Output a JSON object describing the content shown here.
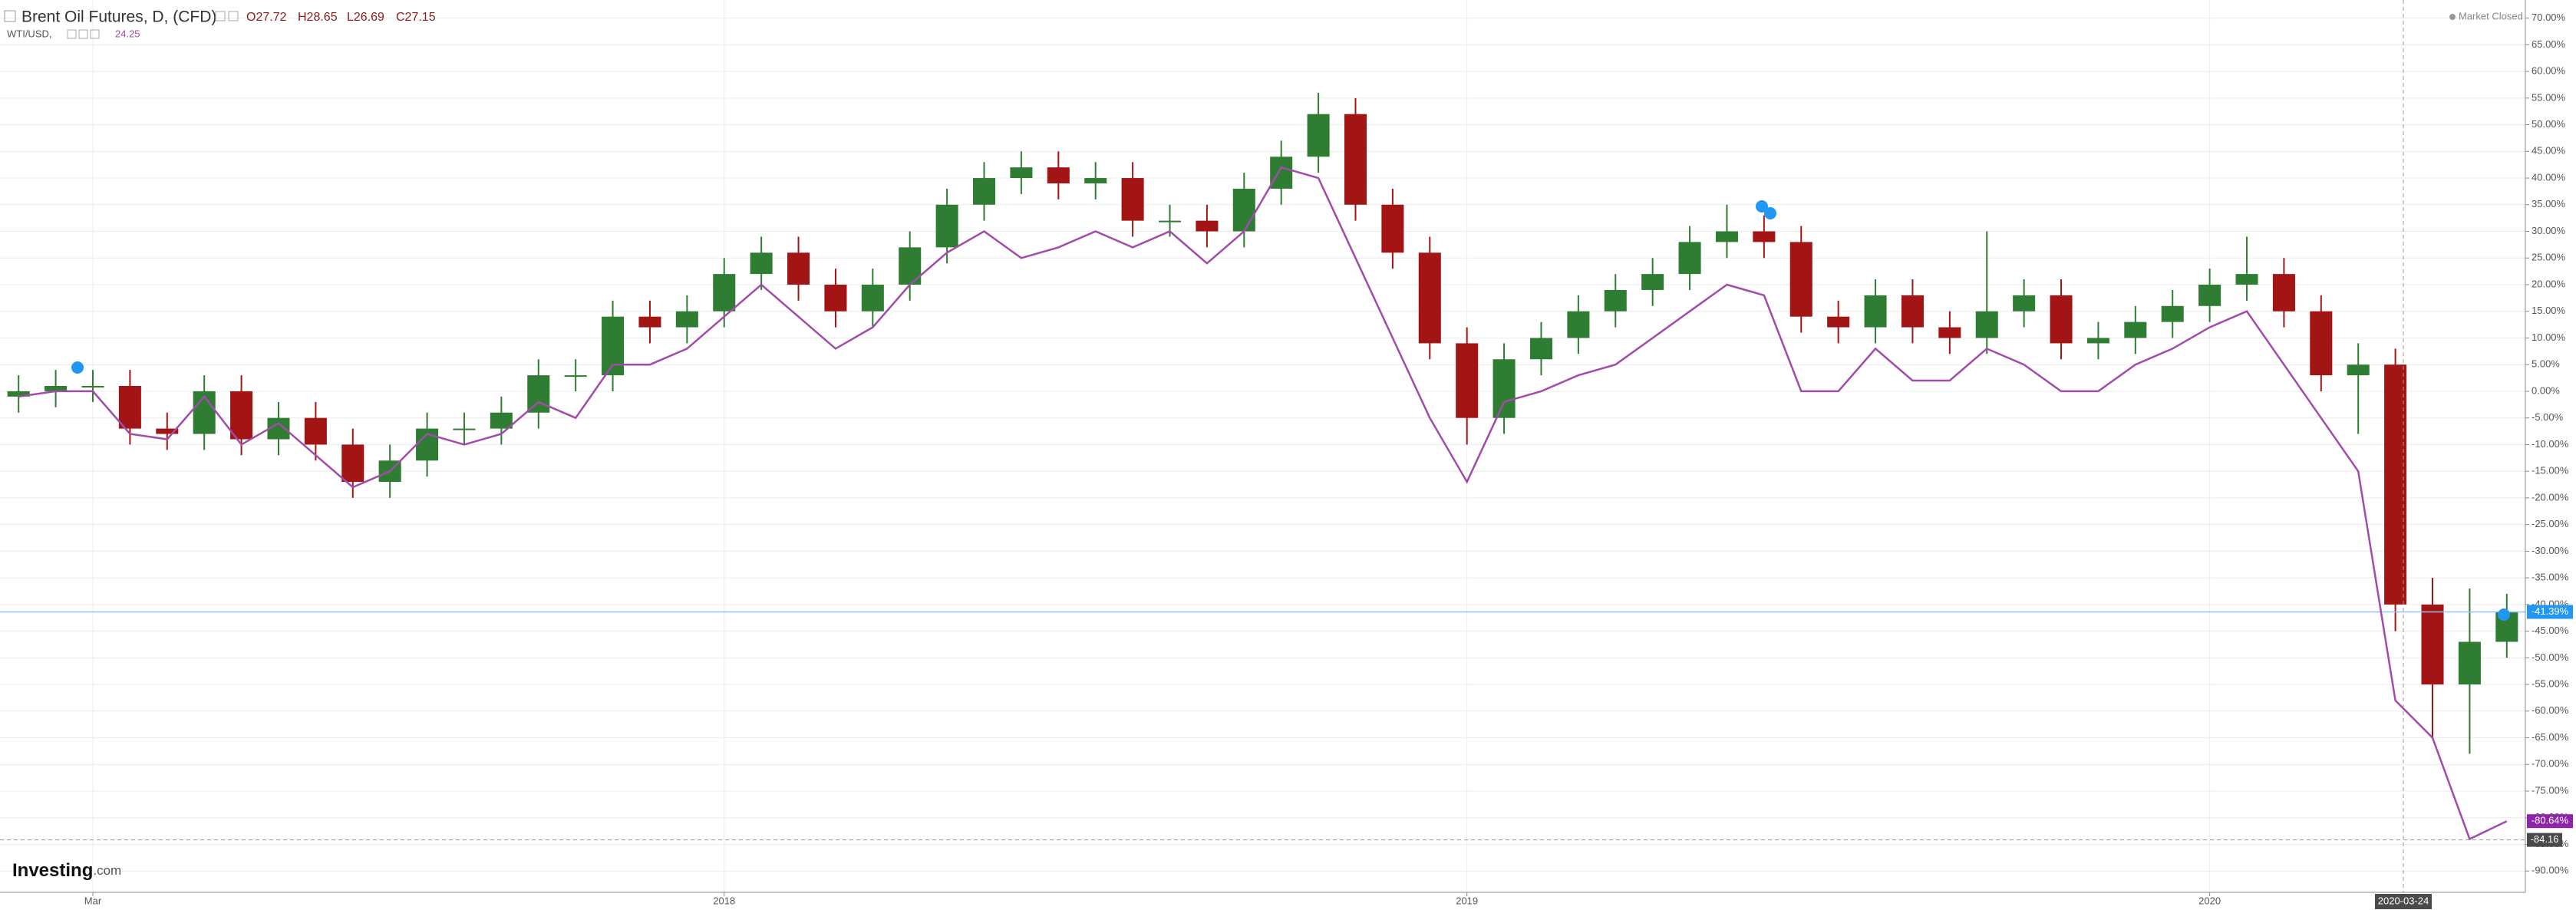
{
  "chart_data": {
    "type": "candlestick",
    "ohlc": [
      "O27.72",
      "H28.65",
      "L26.69",
      "C27.15"
    ],
    "market_status": "Market Closed",
    "logo": [
      "Investing",
      ".com"
    ],
    "categories": [
      null,
      null,
      "Mar",
      null,
      null,
      null,
      null,
      null,
      null,
      null,
      null,
      null,
      null,
      null,
      null,
      null,
      null,
      null,
      null,
      "2018",
      null,
      null,
      null,
      null,
      null,
      null,
      null,
      null,
      null,
      null,
      null,
      null,
      null,
      null,
      null,
      null,
      null,
      null,
      null,
      "2019",
      null,
      null,
      null,
      null,
      null,
      null,
      null,
      null,
      null,
      null,
      null,
      null,
      null,
      null,
      null,
      null,
      null,
      null,
      null,
      "2020",
      null,
      null,
      null,
      null,
      null,
      null,
      null,
      null
    ],
    "crosshair": {
      "x_label": "2020-03-24",
      "y": -84.16
    },
    "series": [
      {
        "name": "Brent Oil Futures, D, (CFD)",
        "type": "candlestick",
        "up_color": "#2e7d32",
        "down_color": "#a31515",
        "last_label": "-41.39%",
        "last_color": "#2196f3",
        "open": [
          -1,
          0,
          1,
          1,
          -7,
          -8,
          0,
          -9,
          -5,
          -10,
          -17,
          -13,
          -7,
          -7,
          -4,
          3,
          3,
          14,
          12,
          15,
          22,
          26,
          20,
          15,
          20,
          27,
          35,
          40,
          42,
          39,
          40,
          32,
          32,
          30,
          38,
          44,
          52,
          35,
          26,
          9,
          -5,
          6,
          10,
          15,
          19,
          22,
          28,
          30,
          28,
          14,
          12,
          18,
          12,
          10,
          15,
          18,
          9,
          10,
          13,
          16,
          20,
          22,
          15,
          3,
          5,
          -40,
          -55,
          -47
        ],
        "high": [
          3,
          4,
          4,
          4,
          -4,
          3,
          3,
          -2,
          -2,
          -7,
          -10,
          -4,
          -4,
          -1,
          6,
          6,
          17,
          17,
          18,
          25,
          29,
          29,
          23,
          23,
          30,
          38,
          43,
          45,
          45,
          43,
          43,
          35,
          35,
          41,
          47,
          56,
          55,
          38,
          29,
          12,
          9,
          13,
          18,
          22,
          25,
          31,
          35,
          33,
          31,
          17,
          21,
          21,
          15,
          30,
          21,
          21,
          13,
          16,
          19,
          23,
          29,
          25,
          18,
          9,
          8,
          -35,
          -37,
          -38
        ],
        "low": [
          -4,
          -3,
          -2,
          -10,
          -11,
          -11,
          -12,
          -12,
          -13,
          -20,
          -20,
          -16,
          -10,
          -10,
          -7,
          0,
          0,
          9,
          9,
          12,
          19,
          17,
          12,
          12,
          17,
          24,
          32,
          37,
          36,
          36,
          29,
          29,
          27,
          27,
          35,
          41,
          32,
          23,
          6,
          -10,
          -8,
          3,
          7,
          12,
          16,
          19,
          25,
          25,
          11,
          9,
          9,
          9,
          7,
          7,
          12,
          6,
          6,
          7,
          10,
          13,
          17,
          12,
          0,
          -8,
          -45,
          -65,
          -68,
          -50
        ],
        "close": [
          0,
          1,
          1,
          -7,
          -8,
          0,
          -9,
          -5,
          -10,
          -17,
          -13,
          -7,
          -7,
          -4,
          3,
          3,
          14,
          12,
          15,
          22,
          26,
          20,
          15,
          20,
          27,
          35,
          40,
          42,
          39,
          40,
          32,
          32,
          30,
          38,
          44,
          52,
          35,
          26,
          9,
          -5,
          6,
          10,
          15,
          19,
          22,
          28,
          30,
          28,
          14,
          12,
          18,
          12,
          10,
          15,
          18,
          9,
          10,
          13,
          16,
          20,
          22,
          15,
          3,
          5,
          -40,
          -55,
          -47,
          -41.39
        ]
      },
      {
        "name": "WTI/USD,",
        "type": "line",
        "color": "#a04ca8",
        "price_label": "24.25",
        "last_label": "-80.64%",
        "last_color": "#8e24aa",
        "values": [
          -1,
          0,
          0,
          -8,
          -9,
          -1,
          -10,
          -6,
          -12,
          -18,
          -15,
          -8,
          -10,
          -8,
          -2,
          -5,
          5,
          5,
          8,
          14,
          20,
          14,
          8,
          12,
          20,
          26,
          30,
          25,
          27,
          30,
          27,
          30,
          24,
          30,
          42,
          40,
          25,
          10,
          -5,
          -17,
          -2,
          0,
          3,
          5,
          10,
          15,
          20,
          18,
          0,
          0,
          8,
          2,
          2,
          8,
          5,
          0,
          0,
          5,
          8,
          12,
          15,
          5,
          -5,
          -15,
          -58,
          -65,
          -84,
          -80.64
        ]
      }
    ],
    "ylim": [
      -94,
      73.4
    ],
    "yticks": [
      {
        "value": 70,
        "label": "70.00%"
      },
      {
        "value": 65,
        "label": "65.00%"
      },
      {
        "value": 60,
        "label": "60.00%"
      },
      {
        "value": 55,
        "label": "55.00%"
      },
      {
        "value": 50,
        "label": "50.00%"
      },
      {
        "value": 45,
        "label": "45.00%"
      },
      {
        "value": 40,
        "label": "40.00%"
      },
      {
        "value": 35,
        "label": "35.00%"
      },
      {
        "value": 30,
        "label": "30.00%"
      },
      {
        "value": 25,
        "label": "25.00%"
      },
      {
        "value": 20,
        "label": "20.00%"
      },
      {
        "value": 15,
        "label": "15.00%"
      },
      {
        "value": 10,
        "label": "10.00%"
      },
      {
        "value": 5,
        "label": "5.00%"
      },
      {
        "value": 0,
        "label": "0.00%"
      },
      {
        "value": -5,
        "label": "-5.00%"
      },
      {
        "value": -10,
        "label": "-10.00%"
      },
      {
        "value": -15,
        "label": "-15.00%"
      },
      {
        "value": -20,
        "label": "-20.00%"
      },
      {
        "value": -25,
        "label": "-25.00%"
      },
      {
        "value": -30,
        "label": "-30.00%"
      },
      {
        "value": -35,
        "label": "-35.00%"
      },
      {
        "value": -40,
        "label": "-40.00%"
      },
      {
        "value": -45,
        "label": "-45.00%"
      },
      {
        "value": -50,
        "label": "-50.00%"
      },
      {
        "value": -55,
        "label": "-55.00%"
      },
      {
        "value": -60,
        "label": "-60.00%"
      },
      {
        "value": -65,
        "label": "-65.00%"
      },
      {
        "value": -70,
        "label": "-70.00%"
      },
      {
        "value": -75,
        "label": "-75.00%"
      },
      {
        "value": -80,
        "label": "-80.00%"
      },
      {
        "value": -85,
        "label": "-85.00%"
      },
      {
        "value": -90,
        "label": "-90.00%"
      }
    ],
    "grid": true
  }
}
